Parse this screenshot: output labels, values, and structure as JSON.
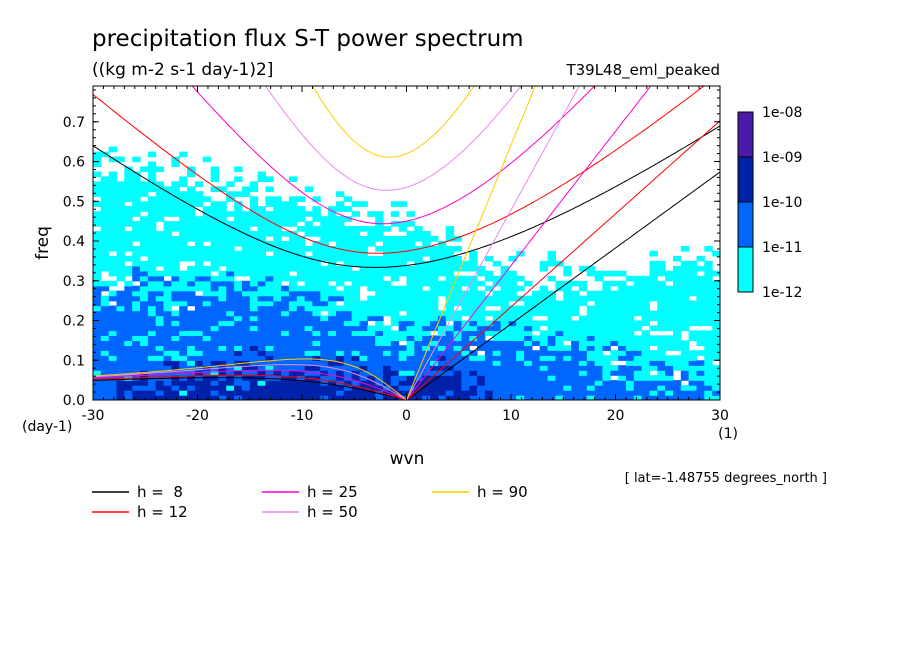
{
  "chart_data": {
    "type": "heatmap",
    "title": "precipitation flux S-T power spectrum",
    "units": "((kg m-2 s-1 day-1)2]",
    "experiment": "T39L48_eml_peaked",
    "xlabel": "wvn",
    "x_units": "(1)",
    "ylabel": "freq",
    "y_units": "(day-1)",
    "xlim": [
      -30,
      30
    ],
    "ylim": [
      0,
      0.79
    ],
    "x_ticks": [
      -30,
      -20,
      -10,
      0,
      10,
      20,
      30
    ],
    "x_tick_labels": [
      "-30",
      "-20",
      "-10",
      "0",
      "10",
      "20",
      "30"
    ],
    "y_ticks": [
      0,
      0.1,
      0.2,
      0.3,
      0.4,
      0.5,
      0.6,
      0.7
    ],
    "y_tick_labels": [
      "0.0",
      "0.1",
      "0.2",
      "0.3",
      "0.4",
      "0.5",
      "0.6",
      "0.7"
    ],
    "annotation": "[ lat=-1.48755 degrees_north ]",
    "colorbar": {
      "levels": [
        "1e-12",
        "1e-11",
        "1e-10",
        "1e-09",
        "1e-08"
      ],
      "colors": [
        "#00ffff",
        "#0066ff",
        "#0022aa",
        "#4b1aa8"
      ]
    },
    "heatmap_regions": [
      {
        "level": 1,
        "description": "cyan band",
        "freq_upper_at_wvn": [
          [
            -30,
            0.6
          ],
          [
            -20,
            0.57
          ],
          [
            -10,
            0.5
          ],
          [
            -5,
            0.48
          ],
          [
            0,
            0.45
          ],
          [
            5,
            0.36
          ],
          [
            10,
            0.32
          ],
          [
            15,
            0.32
          ],
          [
            20,
            0.3
          ],
          [
            25,
            0.34
          ],
          [
            30,
            0.35
          ]
        ]
      },
      {
        "level": 2,
        "description": "blue band",
        "freq_upper_at_wvn": [
          [
            -30,
            0.27
          ],
          [
            -20,
            0.29
          ],
          [
            -10,
            0.26
          ],
          [
            -5,
            0.2
          ],
          [
            0,
            0.15
          ],
          [
            5,
            0.18
          ],
          [
            10,
            0.15
          ],
          [
            15,
            0.12
          ],
          [
            20,
            0.1
          ],
          [
            25,
            0.06
          ],
          [
            30,
            0.04
          ]
        ]
      },
      {
        "level": 3,
        "description": "dark blue",
        "freq_upper_at_wvn": [
          [
            -28,
            0.05
          ],
          [
            -20,
            0.07
          ],
          [
            -12,
            0.08
          ],
          [
            -6,
            0.06
          ],
          [
            -2,
            0.04
          ],
          [
            0,
            0.04
          ],
          [
            3,
            0.08
          ],
          [
            6,
            0.06
          ],
          [
            8,
            0.03
          ]
        ]
      }
    ],
    "dispersion_curves": [
      {
        "h": "8",
        "name": "h =  8",
        "color": "#000000"
      },
      {
        "h": "12",
        "name": "h = 12",
        "color": "#ff0000"
      },
      {
        "h": "25",
        "name": "h = 25",
        "color": "#ff00cc"
      },
      {
        "h": "50",
        "name": "h = 50",
        "color": "#ee88ee"
      },
      {
        "h": "90",
        "name": "h = 90",
        "color": "#ffcc00"
      }
    ]
  }
}
